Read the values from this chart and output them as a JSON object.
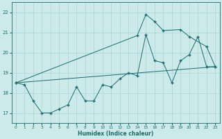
{
  "xlabel": "Humidex (Indice chaleur)",
  "bg_color": "#cceaea",
  "line_color": "#1a6b6b",
  "grid_color": "#aad4d4",
  "xlim": [
    -0.5,
    23.5
  ],
  "ylim": [
    16.5,
    22.5
  ],
  "yticks": [
    17,
    18,
    19,
    20,
    21,
    22
  ],
  "xticks": [
    0,
    1,
    2,
    3,
    4,
    5,
    6,
    7,
    8,
    9,
    10,
    11,
    12,
    13,
    14,
    15,
    16,
    17,
    18,
    19,
    20,
    21,
    22,
    23
  ],
  "line1_x": [
    0,
    1,
    2,
    3,
    4,
    5,
    6,
    7,
    8,
    9,
    10,
    11,
    12,
    13,
    14,
    15,
    16,
    17,
    18,
    19,
    20,
    21,
    22,
    23
  ],
  "line1_y": [
    18.5,
    18.4,
    17.6,
    17.0,
    17.0,
    17.2,
    17.4,
    18.3,
    17.6,
    17.6,
    18.4,
    18.3,
    18.7,
    19.0,
    18.85,
    20.9,
    19.6,
    19.5,
    18.5,
    19.6,
    19.9,
    20.8,
    19.3,
    19.3
  ],
  "line2_x": [
    0,
    14,
    15,
    16,
    17,
    19,
    20,
    22,
    23
  ],
  "line2_y": [
    18.5,
    20.85,
    21.9,
    21.55,
    21.1,
    21.15,
    20.8,
    20.3,
    19.3
  ],
  "line3_x": [
    0,
    23
  ],
  "line3_y": [
    18.5,
    19.3
  ]
}
